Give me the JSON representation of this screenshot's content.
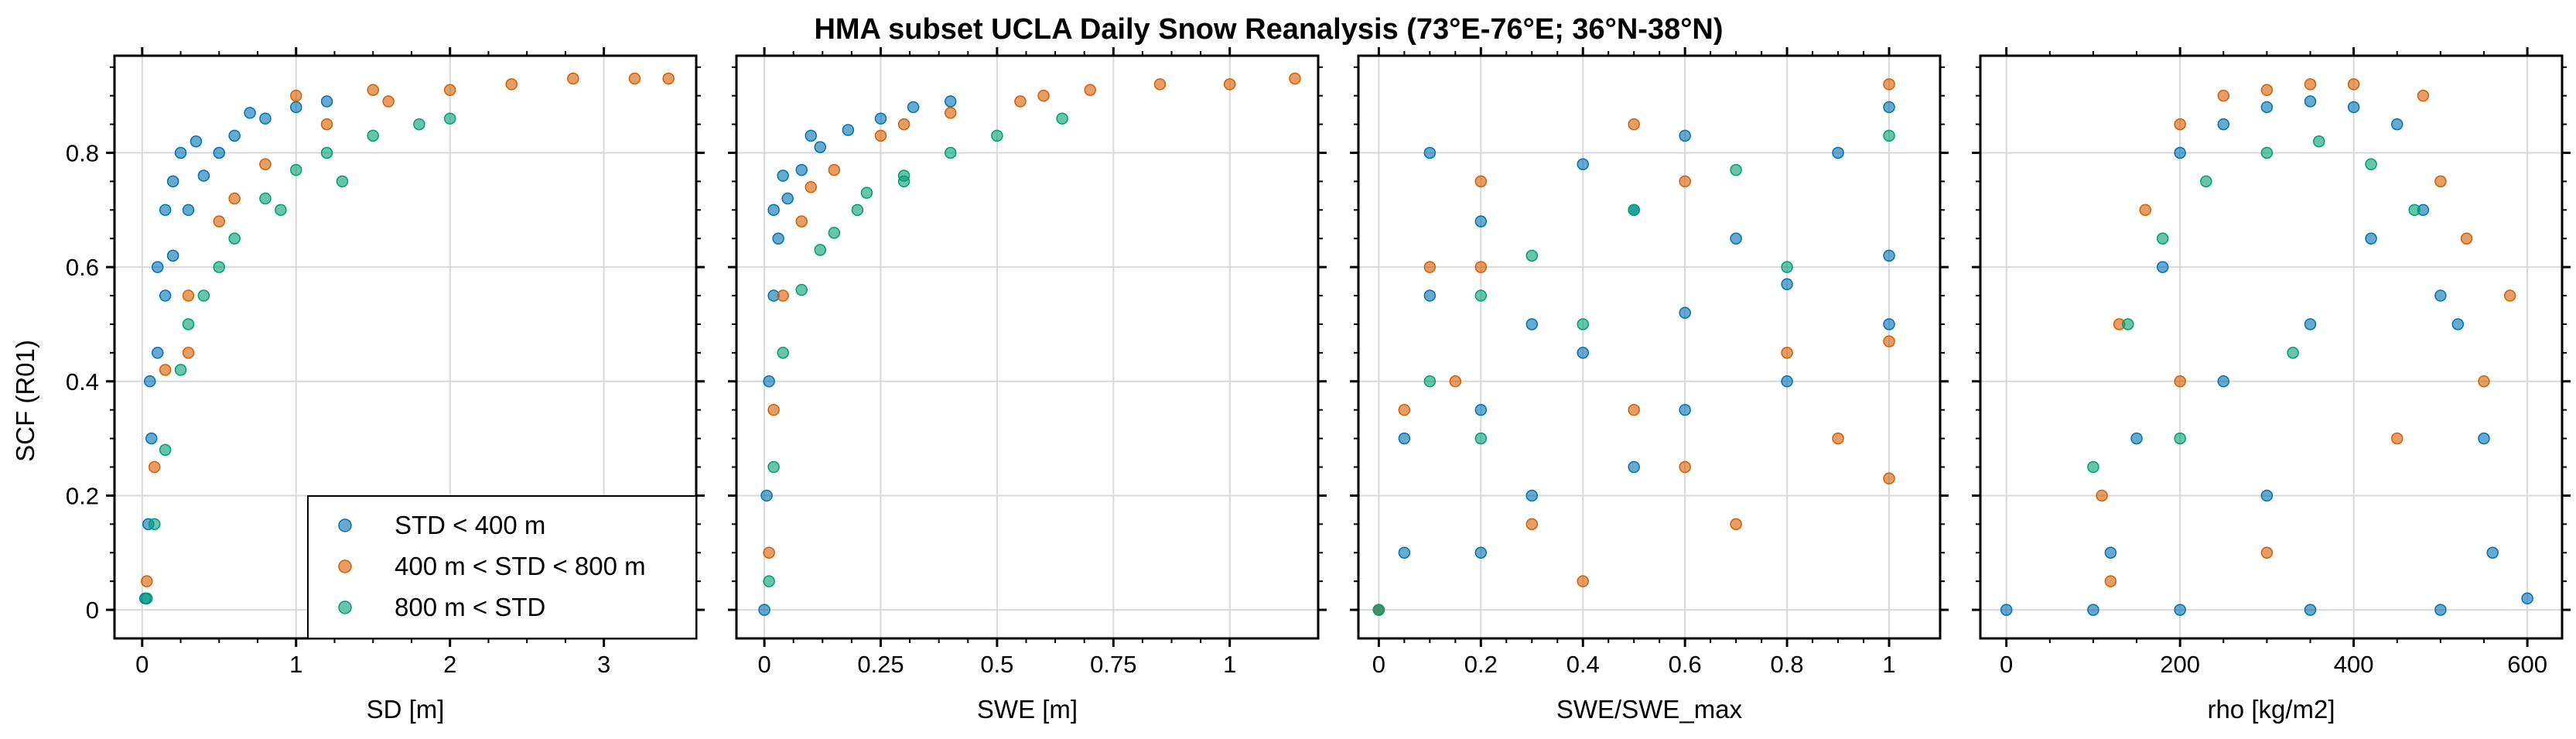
{
  "colors": {
    "s0": "#0072b2",
    "s1": "#d55e00",
    "s2": "#009e73"
  },
  "chart_data": {
    "title": "HMA subset UCLA Daily Snow Reanalysis (73°E-76°E; 36°N-38°N)",
    "type": "scatter",
    "ylabel": "SCF (R01)",
    "ylim": [
      -0.05,
      0.97
    ],
    "yticks": [
      0,
      0.2,
      0.4,
      0.6,
      0.8
    ],
    "ytick_labels": [
      "0",
      "0.2",
      "0.4",
      "0.6",
      "0.8"
    ],
    "grid": true,
    "legend": {
      "location": "lower right of first panel",
      "entries": [
        "STD < 400 m",
        "400 m < STD < 800 m",
        "800 m < STD"
      ]
    },
    "panels": [
      {
        "xlabel": "SD [m]",
        "xlim": [
          -0.18,
          3.6
        ],
        "xticks": [
          0,
          1,
          2,
          3
        ],
        "xtick_labels": [
          "0",
          "1",
          "2",
          "3"
        ],
        "series": [
          {
            "name": "STD < 400 m",
            "points": [
              [
                0.02,
                0.02
              ],
              [
                0.04,
                0.15
              ],
              [
                0.06,
                0.3
              ],
              [
                0.1,
                0.45
              ],
              [
                0.15,
                0.55
              ],
              [
                0.2,
                0.62
              ],
              [
                0.3,
                0.7
              ],
              [
                0.4,
                0.76
              ],
              [
                0.5,
                0.8
              ],
              [
                0.6,
                0.83
              ],
              [
                0.8,
                0.86
              ],
              [
                1.0,
                0.88
              ],
              [
                1.2,
                0.89
              ],
              [
                0.1,
                0.6
              ],
              [
                0.2,
                0.75
              ],
              [
                0.35,
                0.82
              ],
              [
                0.05,
                0.4
              ],
              [
                0.15,
                0.7
              ],
              [
                0.25,
                0.8
              ],
              [
                0.7,
                0.87
              ]
            ]
          },
          {
            "name": "400 m < STD < 800 m",
            "points": [
              [
                0.03,
                0.05
              ],
              [
                0.08,
                0.25
              ],
              [
                0.15,
                0.42
              ],
              [
                0.3,
                0.55
              ],
              [
                0.5,
                0.68
              ],
              [
                0.8,
                0.78
              ],
              [
                1.2,
                0.85
              ],
              [
                1.6,
                0.89
              ],
              [
                2.0,
                0.91
              ],
              [
                2.4,
                0.92
              ],
              [
                2.8,
                0.93
              ],
              [
                3.2,
                0.93
              ],
              [
                3.42,
                0.93
              ],
              [
                1.0,
                0.9
              ],
              [
                1.5,
                0.91
              ],
              [
                0.3,
                0.45
              ],
              [
                0.6,
                0.72
              ]
            ]
          },
          {
            "name": "800 m < STD",
            "points": [
              [
                0.03,
                0.02
              ],
              [
                0.08,
                0.15
              ],
              [
                0.15,
                0.28
              ],
              [
                0.25,
                0.42
              ],
              [
                0.4,
                0.55
              ],
              [
                0.6,
                0.65
              ],
              [
                0.8,
                0.72
              ],
              [
                1.0,
                0.77
              ],
              [
                1.2,
                0.8
              ],
              [
                1.5,
                0.83
              ],
              [
                1.8,
                0.85
              ],
              [
                2.0,
                0.86
              ],
              [
                0.5,
                0.6
              ],
              [
                0.3,
                0.5
              ],
              [
                1.3,
                0.75
              ],
              [
                0.9,
                0.7
              ]
            ]
          }
        ]
      },
      {
        "xlabel": "SWE [m]",
        "xlim": [
          -0.06,
          1.19
        ],
        "xticks": [
          0,
          0.25,
          0.5,
          0.75,
          1
        ],
        "xtick_labels": [
          "0",
          "0.25",
          "0.5",
          "0.75",
          "1"
        ],
        "series": [
          {
            "name": "STD < 400 m",
            "points": [
              [
                0.0,
                0.0
              ],
              [
                0.005,
                0.2
              ],
              [
                0.01,
                0.4
              ],
              [
                0.02,
                0.55
              ],
              [
                0.03,
                0.65
              ],
              [
                0.05,
                0.72
              ],
              [
                0.08,
                0.77
              ],
              [
                0.12,
                0.81
              ],
              [
                0.18,
                0.84
              ],
              [
                0.25,
                0.86
              ],
              [
                0.32,
                0.88
              ],
              [
                0.4,
                0.89
              ],
              [
                0.02,
                0.7
              ],
              [
                0.04,
                0.76
              ],
              [
                0.1,
                0.83
              ]
            ]
          },
          {
            "name": "400 m < STD < 800 m",
            "points": [
              [
                0.01,
                0.1
              ],
              [
                0.02,
                0.35
              ],
              [
                0.04,
                0.55
              ],
              [
                0.08,
                0.68
              ],
              [
                0.15,
                0.77
              ],
              [
                0.25,
                0.83
              ],
              [
                0.4,
                0.87
              ],
              [
                0.55,
                0.89
              ],
              [
                0.7,
                0.91
              ],
              [
                0.85,
                0.92
              ],
              [
                1.0,
                0.92
              ],
              [
                1.14,
                0.93
              ],
              [
                0.1,
                0.74
              ],
              [
                0.3,
                0.85
              ],
              [
                0.6,
                0.9
              ]
            ]
          },
          {
            "name": "800 m < STD",
            "points": [
              [
                0.01,
                0.05
              ],
              [
                0.02,
                0.25
              ],
              [
                0.04,
                0.45
              ],
              [
                0.08,
                0.56
              ],
              [
                0.12,
                0.63
              ],
              [
                0.2,
                0.7
              ],
              [
                0.3,
                0.76
              ],
              [
                0.4,
                0.8
              ],
              [
                0.5,
                0.83
              ],
              [
                0.64,
                0.86
              ],
              [
                0.22,
                0.73
              ],
              [
                0.3,
                0.75
              ],
              [
                0.15,
                0.66
              ]
            ]
          }
        ]
      },
      {
        "xlabel": "SWE/SWE_max",
        "xlim": [
          -0.04,
          1.1
        ],
        "xticks": [
          0,
          0.2,
          0.4,
          0.6,
          0.8,
          1
        ],
        "xtick_labels": [
          "0",
          "0.2",
          "0.4",
          "0.6",
          "0.8",
          "1"
        ],
        "series": [
          {
            "name": "STD < 400 m",
            "points": [
              [
                0.0,
                0.0
              ],
              [
                0.05,
                0.3
              ],
              [
                0.1,
                0.55
              ],
              [
                0.2,
                0.68
              ],
              [
                0.4,
                0.78
              ],
              [
                0.6,
                0.83
              ],
              [
                1.0,
                0.88
              ],
              [
                0.05,
                0.1
              ],
              [
                0.2,
                0.35
              ],
              [
                0.4,
                0.45
              ],
              [
                0.6,
                0.52
              ],
              [
                0.8,
                0.57
              ],
              [
                1.0,
                0.62
              ],
              [
                0.3,
                0.2
              ],
              [
                0.6,
                0.35
              ],
              [
                1.0,
                0.5
              ],
              [
                0.1,
                0.8
              ],
              [
                0.5,
                0.7
              ],
              [
                0.9,
                0.8
              ],
              [
                0.3,
                0.5
              ],
              [
                0.7,
                0.65
              ],
              [
                0.2,
                0.1
              ],
              [
                0.5,
                0.25
              ],
              [
                0.8,
                0.4
              ]
            ]
          },
          {
            "name": "400 m < STD < 800 m",
            "points": [
              [
                0.0,
                0.0
              ],
              [
                0.05,
                0.35
              ],
              [
                0.1,
                0.6
              ],
              [
                0.2,
                0.75
              ],
              [
                0.5,
                0.85
              ],
              [
                1.0,
                0.92
              ],
              [
                0.3,
                0.15
              ],
              [
                0.6,
                0.25
              ],
              [
                0.9,
                0.3
              ],
              [
                0.5,
                0.35
              ],
              [
                0.8,
                0.45
              ],
              [
                1.0,
                0.47
              ],
              [
                0.4,
                0.05
              ],
              [
                0.7,
                0.15
              ],
              [
                1.0,
                0.23
              ],
              [
                0.15,
                0.4
              ],
              [
                0.6,
                0.75
              ],
              [
                0.2,
                0.6
              ]
            ]
          },
          {
            "name": "800 m < STD",
            "points": [
              [
                0.0,
                0.0
              ],
              [
                0.1,
                0.4
              ],
              [
                0.2,
                0.55
              ],
              [
                0.3,
                0.62
              ],
              [
                0.5,
                0.7
              ],
              [
                0.7,
                0.77
              ],
              [
                1.0,
                0.83
              ],
              [
                0.4,
                0.5
              ],
              [
                0.8,
                0.6
              ],
              [
                0.2,
                0.3
              ]
            ]
          }
        ]
      },
      {
        "xlabel": "rho [kg/m2]",
        "xlim": [
          -30,
          640
        ],
        "xticks": [
          0,
          200,
          400,
          600
        ],
        "xtick_labels": [
          "0",
          "200",
          "400",
          "600"
        ],
        "series": [
          {
            "name": "STD < 400 m",
            "points": [
              [
                0,
                0.0
              ],
              [
                100,
                0.0
              ],
              [
                200,
                0.0
              ],
              [
                350,
                0.0
              ],
              [
                500,
                0.0
              ],
              [
                120,
                0.1
              ],
              [
                150,
                0.3
              ],
              [
                180,
                0.6
              ],
              [
                200,
                0.8
              ],
              [
                250,
                0.85
              ],
              [
                300,
                0.88
              ],
              [
                350,
                0.89
              ],
              [
                400,
                0.88
              ],
              [
                450,
                0.85
              ],
              [
                500,
                0.55
              ],
              [
                550,
                0.3
              ],
              [
                600,
                0.02
              ],
              [
                250,
                0.4
              ],
              [
                300,
                0.2
              ],
              [
                350,
                0.5
              ],
              [
                420,
                0.65
              ],
              [
                480,
                0.7
              ],
              [
                520,
                0.5
              ],
              [
                560,
                0.1
              ]
            ]
          },
          {
            "name": "400 m < STD < 800 m",
            "points": [
              [
                110,
                0.2
              ],
              [
                130,
                0.5
              ],
              [
                160,
                0.7
              ],
              [
                200,
                0.85
              ],
              [
                250,
                0.9
              ],
              [
                300,
                0.91
              ],
              [
                350,
                0.92
              ],
              [
                400,
                0.92
              ],
              [
                480,
                0.9
              ],
              [
                500,
                0.75
              ],
              [
                530,
                0.65
              ],
              [
                580,
                0.55
              ],
              [
                550,
                0.4
              ],
              [
                300,
                0.1
              ],
              [
                200,
                0.4
              ],
              [
                450,
                0.3
              ],
              [
                120,
                0.05
              ]
            ]
          },
          {
            "name": "800 m < STD",
            "points": [
              [
                100,
                0.25
              ],
              [
                140,
                0.5
              ],
              [
                180,
                0.65
              ],
              [
                230,
                0.75
              ],
              [
                300,
                0.8
              ],
              [
                360,
                0.82
              ],
              [
                420,
                0.78
              ],
              [
                470,
                0.7
              ],
              [
                200,
                0.3
              ],
              [
                330,
                0.45
              ]
            ]
          }
        ]
      }
    ]
  }
}
